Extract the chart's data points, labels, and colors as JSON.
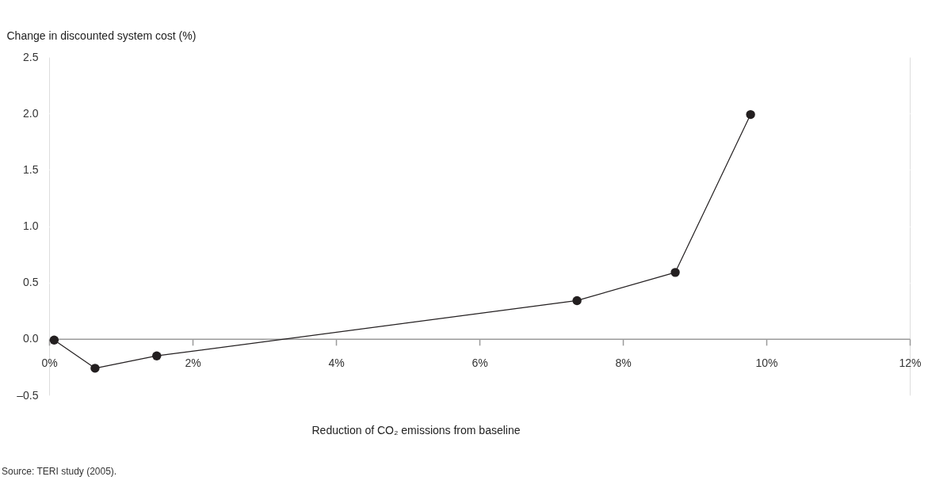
{
  "chart_data": {
    "type": "line",
    "xlabel": "Reduction of CO₂ emissions from baseline",
    "ylabel": "Change in discounted system cost (%)",
    "x": [
      0.07,
      0.64,
      1.5,
      7.36,
      8.73,
      9.78
    ],
    "series": [
      {
        "color": "#231f20",
        "values": [
          -0.01,
          -0.26,
          -0.15,
          0.34,
          0.59,
          1.99
        ]
      }
    ],
    "xlim": [
      0,
      12
    ],
    "xticks": [
      {
        "value": 0,
        "label": "0%"
      },
      {
        "value": 2,
        "label": "2%"
      },
      {
        "value": 4,
        "label": "4%"
      },
      {
        "value": 6,
        "label": "6%"
      },
      {
        "value": 8,
        "label": "8%"
      },
      {
        "value": 10,
        "label": "10%"
      },
      {
        "value": 12,
        "label": "12%"
      }
    ],
    "ylim": [
      -0.5,
      2.5
    ],
    "yticks": [
      {
        "value": -0.5,
        "label": "–0.5"
      },
      {
        "value": 0,
        "label": "0.0"
      },
      {
        "value": 0.5,
        "label": "0.5"
      },
      {
        "value": 1,
        "label": "1.0"
      },
      {
        "value": 1.5,
        "label": "1.5"
      },
      {
        "value": 2,
        "label": "2.0"
      },
      {
        "value": 2.5,
        "label": "2.5"
      }
    ],
    "grid": "y",
    "marker": "circle",
    "line_style": "solid",
    "annotations": [
      "Source: TERI study (2005)."
    ]
  }
}
